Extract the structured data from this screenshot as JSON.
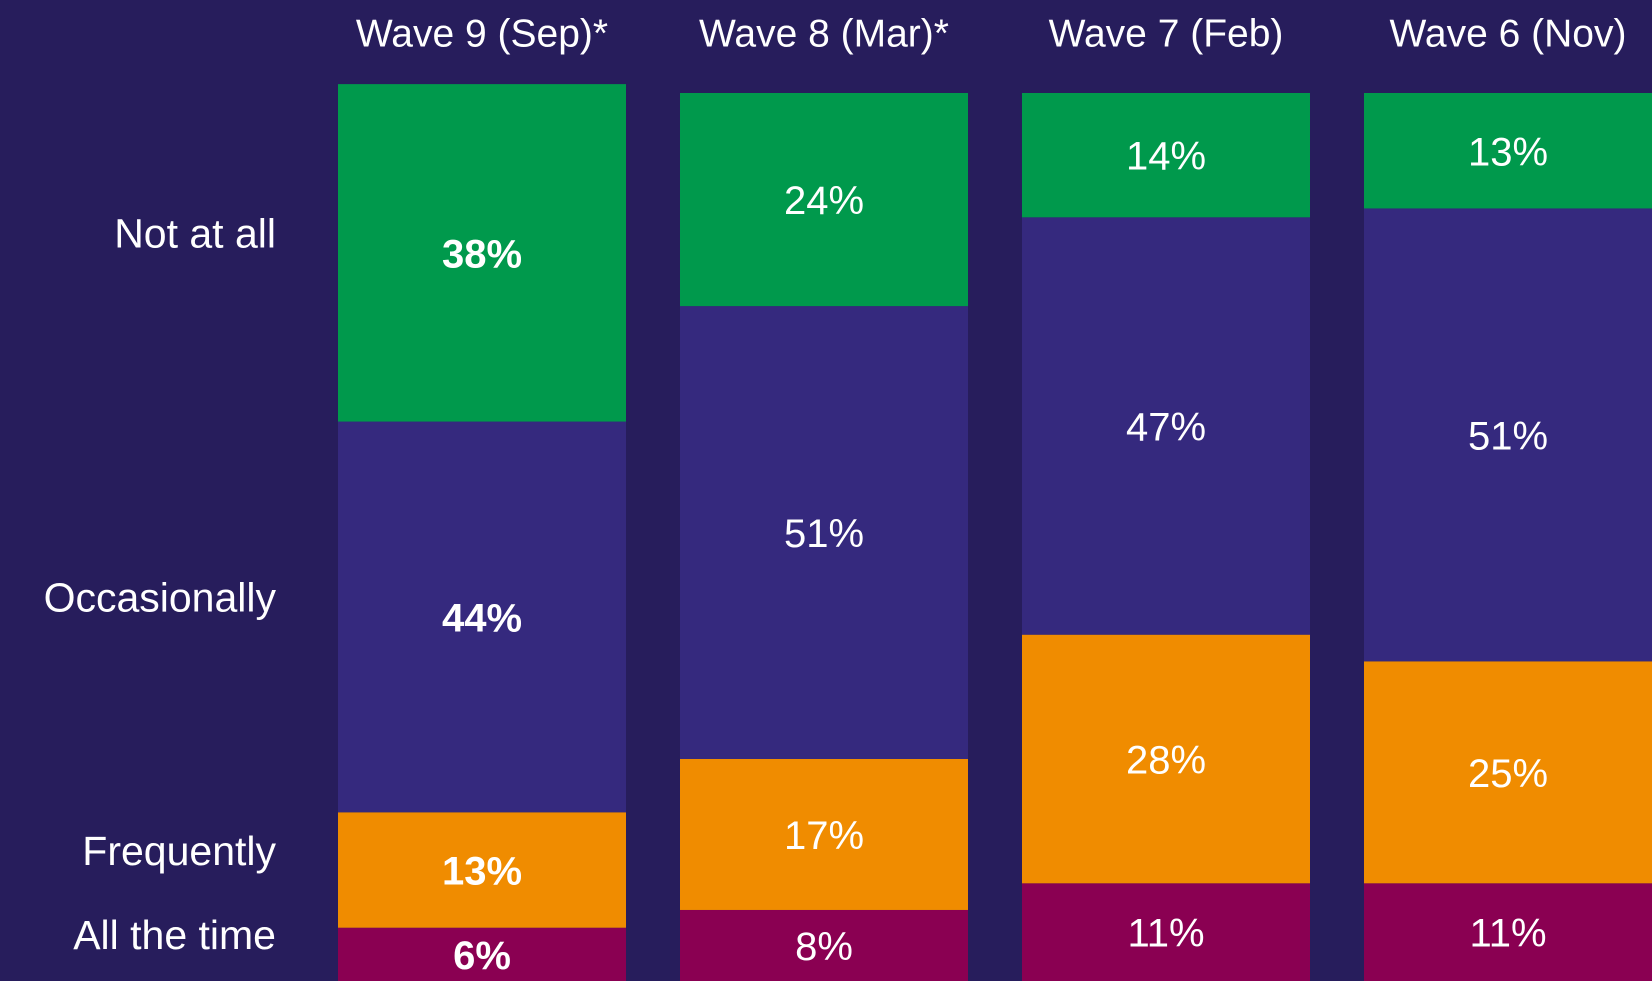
{
  "chart_data": {
    "type": "stacked_bar",
    "categories": [
      "Wave 9 (Sep)*",
      "Wave 8 (Mar)*",
      "Wave 7 (Feb)",
      "Wave 6 (Nov)"
    ],
    "series": [
      {
        "name": "All the time",
        "color": "#8a0052",
        "values": [
          6,
          8,
          11,
          11
        ],
        "value_labels": [
          "6%",
          "8%",
          "11%",
          "11%"
        ]
      },
      {
        "name": "Frequently",
        "color": "#f08c00",
        "values": [
          13,
          17,
          28,
          25
        ],
        "value_labels": [
          "13%",
          "17%",
          "28%",
          "25%"
        ]
      },
      {
        "name": "Occasionally",
        "color": "#35297e",
        "values": [
          44,
          51,
          47,
          51
        ],
        "value_labels": [
          "44%",
          "51%",
          "47%",
          "51%"
        ]
      },
      {
        "name": "Not at all",
        "color": "#00994c",
        "values": [
          38,
          24,
          14,
          13
        ],
        "value_labels": [
          "38%",
          "24%",
          "14%",
          "13%"
        ]
      }
    ]
  }
}
